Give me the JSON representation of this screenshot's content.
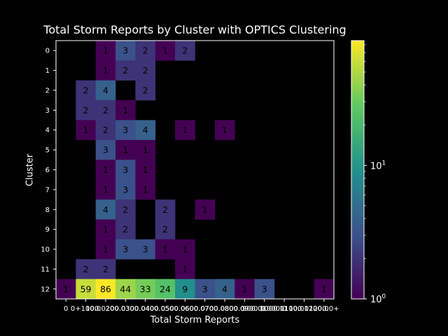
{
  "chart_data": {
    "type": "heatmap",
    "title": "Total Storm Reports by Cluster with OPTICS Clustering",
    "xlabel": "Total Storm Reports",
    "ylabel": "Cluster",
    "x_categories": [
      "0",
      "0+",
      "100.0",
      "200.0",
      "300.0",
      "400.0",
      "500.0",
      "600.0",
      "700.0",
      "800.0",
      "900.0",
      "1000.0",
      "1100.0",
      "1200.0+"
    ],
    "x_tick_labels": [
      "0",
      "0+100.0",
      "100.0200.0",
      "200.0300.0",
      "300.0400.0",
      "400.0500.0",
      "500.0600.0",
      "600.0700.0",
      "700.0800.0",
      "800.0900.0",
      "900.01000.0",
      "1000.01100.0",
      "1100.01200.0",
      "1200.0+"
    ],
    "y_categories": [
      "0",
      "1",
      "2",
      "3",
      "4",
      "5",
      "6",
      "7",
      "8",
      "9",
      "10",
      "11",
      "12"
    ],
    "values": [
      [
        0,
        0,
        1,
        3,
        2,
        1,
        2,
        0,
        0,
        0,
        0,
        0,
        0,
        0
      ],
      [
        0,
        0,
        1,
        2,
        2,
        0,
        0,
        0,
        0,
        0,
        0,
        0,
        0,
        0
      ],
      [
        0,
        2,
        4,
        0,
        2,
        0,
        0,
        0,
        0,
        0,
        0,
        0,
        0,
        0
      ],
      [
        0,
        2,
        2,
        1,
        0,
        0,
        0,
        0,
        0,
        0,
        0,
        0,
        0,
        0
      ],
      [
        0,
        1,
        2,
        3,
        4,
        0,
        1,
        0,
        1,
        0,
        0,
        0,
        0,
        0
      ],
      [
        0,
        0,
        3,
        1,
        1,
        0,
        0,
        0,
        0,
        0,
        0,
        0,
        0,
        0
      ],
      [
        0,
        0,
        1,
        3,
        1,
        0,
        0,
        0,
        0,
        0,
        0,
        0,
        0,
        0
      ],
      [
        0,
        0,
        1,
        3,
        1,
        0,
        0,
        0,
        0,
        0,
        0,
        0,
        0,
        0
      ],
      [
        0,
        0,
        4,
        2,
        0,
        2,
        0,
        1,
        0,
        0,
        0,
        0,
        0,
        0
      ],
      [
        0,
        0,
        1,
        2,
        0,
        2,
        0,
        0,
        0,
        0,
        0,
        0,
        0,
        0
      ],
      [
        0,
        0,
        1,
        3,
        3,
        1,
        1,
        0,
        0,
        0,
        0,
        0,
        0,
        0
      ],
      [
        0,
        2,
        2,
        0,
        0,
        0,
        1,
        0,
        0,
        0,
        0,
        0,
        0,
        0
      ],
      [
        1,
        59,
        86,
        44,
        33,
        24,
        9,
        3,
        4,
        1,
        3,
        0,
        0,
        1
      ]
    ],
    "color_scale": "log",
    "colormap": "viridis",
    "colorbar_range": [
      1,
      86
    ],
    "colorbar_ticks": [
      {
        "value": 1,
        "base": "10",
        "exp": "0"
      },
      {
        "value": 10,
        "base": "10",
        "exp": "1"
      }
    ],
    "zero_color": "#000000"
  }
}
